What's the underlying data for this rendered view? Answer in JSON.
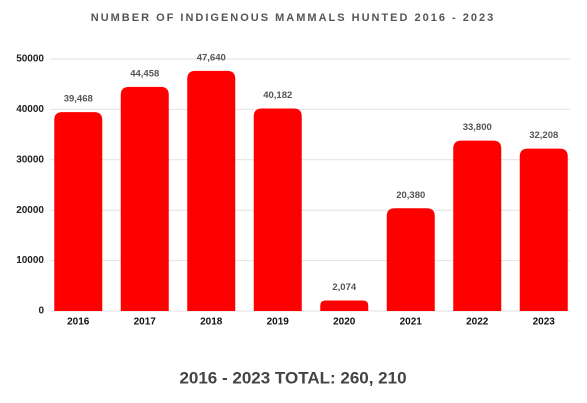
{
  "chart_data": {
    "type": "bar",
    "title": "NUMBER OF INDIGENOUS MAMMALS HUNTED 2016 - 2023",
    "categories": [
      "2016",
      "2017",
      "2018",
      "2019",
      "2020",
      "2021",
      "2022",
      "2023"
    ],
    "values": [
      39468,
      44458,
      47640,
      40182,
      2074,
      20380,
      33800,
      32208
    ],
    "value_labels": [
      "39,468",
      "44,458",
      "47,640",
      "40,182",
      "2,074",
      "20,380",
      "33,800",
      "32,208"
    ],
    "color": "#ff0000",
    "ylim": [
      0,
      50000
    ],
    "yticks": [
      0,
      10000,
      20000,
      30000,
      40000,
      50000
    ],
    "grid": true,
    "footer": "2016 - 2023 TOTAL: 260, 210"
  }
}
